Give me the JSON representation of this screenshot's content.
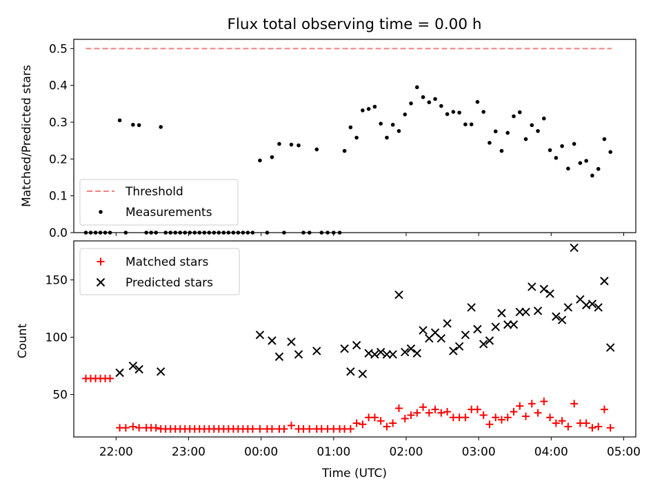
{
  "chart_data": [
    {
      "type": "scatter",
      "title": "Flux total observing time = 0.00 h",
      "xlabel": "",
      "ylabel": "Matched/Predicted stars",
      "xlim": [
        "21:25",
        "05:10"
      ],
      "ylim": [
        0,
        0.525
      ],
      "yticks": [
        0.0,
        0.1,
        0.2,
        0.3,
        0.4,
        0.5
      ],
      "ytick_labels": [
        "0.0",
        "0.1",
        "0.2",
        "0.3",
        "0.4",
        "0.5"
      ],
      "grid": false,
      "legend_position": "lower-left",
      "threshold": {
        "name": "Threshold",
        "value": 0.5,
        "x_range": [
          "21:35",
          "04:50"
        ],
        "color": "#f08080",
        "style": "dashed"
      },
      "series": [
        {
          "name": "Measurements",
          "marker": "dot",
          "color": "#000000",
          "points": [
            [
              "21:35",
              0
            ],
            [
              "21:39",
              0
            ],
            [
              "21:43",
              0
            ],
            [
              "21:47",
              0
            ],
            [
              "21:51",
              0
            ],
            [
              "21:55",
              0
            ],
            [
              "22:03",
              0.305
            ],
            [
              "22:08",
              0
            ],
            [
              "22:14",
              0.293
            ],
            [
              "22:19",
              0.292
            ],
            [
              "22:25",
              0
            ],
            [
              "22:29",
              0
            ],
            [
              "22:33",
              0
            ],
            [
              "22:37",
              0.287
            ],
            [
              "22:41",
              0
            ],
            [
              "22:45",
              0
            ],
            [
              "22:49",
              0
            ],
            [
              "22:53",
              0
            ],
            [
              "22:57",
              0
            ],
            [
              "23:01",
              0
            ],
            [
              "23:05",
              0
            ],
            [
              "23:09",
              0
            ],
            [
              "23:13",
              0
            ],
            [
              "23:17",
              0
            ],
            [
              "23:21",
              0
            ],
            [
              "23:25",
              0
            ],
            [
              "23:29",
              0
            ],
            [
              "23:33",
              0
            ],
            [
              "23:37",
              0
            ],
            [
              "23:41",
              0
            ],
            [
              "23:45",
              0
            ],
            [
              "23:49",
              0
            ],
            [
              "23:53",
              0
            ],
            [
              "23:59",
              0.196
            ],
            [
              "00:05",
              0
            ],
            [
              "00:09",
              0.205
            ],
            [
              "00:15",
              0.241
            ],
            [
              "00:19",
              0
            ],
            [
              "00:25",
              0.239
            ],
            [
              "00:31",
              0.237
            ],
            [
              "00:35",
              0
            ],
            [
              "00:40",
              0
            ],
            [
              "00:46",
              0.226
            ],
            [
              "00:50",
              0
            ],
            [
              "00:55",
              0
            ],
            [
              "01:00",
              0
            ],
            [
              "01:05",
              0
            ],
            [
              "01:09",
              0.222
            ],
            [
              "01:14",
              0.286
            ],
            [
              "01:19",
              0.258
            ],
            [
              "01:24",
              0.332
            ],
            [
              "01:29",
              0.336
            ],
            [
              "01:34",
              0.342
            ],
            [
              "01:39",
              0.296
            ],
            [
              "01:44",
              0.258
            ],
            [
              "01:49",
              0.293
            ],
            [
              "01:54",
              0.276
            ],
            [
              "01:59",
              0.321
            ],
            [
              "02:04",
              0.351
            ],
            [
              "02:09",
              0.395
            ],
            [
              "02:14",
              0.368
            ],
            [
              "02:19",
              0.354
            ],
            [
              "02:24",
              0.363
            ],
            [
              "02:29",
              0.344
            ],
            [
              "02:34",
              0.322
            ],
            [
              "02:39",
              0.328
            ],
            [
              "02:44",
              0.326
            ],
            [
              "02:49",
              0.294
            ],
            [
              "02:54",
              0.294
            ],
            [
              "02:59",
              0.355
            ],
            [
              "03:04",
              0.328
            ],
            [
              "03:09",
              0.244
            ],
            [
              "03:14",
              0.275
            ],
            [
              "03:19",
              0.222
            ],
            [
              "03:24",
              0.271
            ],
            [
              "03:29",
              0.316
            ],
            [
              "03:34",
              0.327
            ],
            [
              "03:39",
              0.254
            ],
            [
              "03:44",
              0.292
            ],
            [
              "03:49",
              0.276
            ],
            [
              "03:54",
              0.31
            ],
            [
              "03:59",
              0.224
            ],
            [
              "04:04",
              0.203
            ],
            [
              "04:09",
              0.235
            ],
            [
              "04:14",
              0.174
            ],
            [
              "04:19",
              0.241
            ],
            [
              "04:24",
              0.189
            ],
            [
              "04:29",
              0.195
            ],
            [
              "04:34",
              0.155
            ],
            [
              "04:39",
              0.173
            ],
            [
              "04:44",
              0.254
            ],
            [
              "04:49",
              0.219
            ]
          ]
        }
      ]
    },
    {
      "type": "scatter",
      "title": "",
      "xlabel": "Time (UTC)",
      "ylabel": "Count",
      "xlim": [
        "21:25",
        "05:10"
      ],
      "ylim": [
        13,
        184
      ],
      "yticks": [
        50,
        100,
        150
      ],
      "ytick_labels": [
        "50",
        "100",
        "150"
      ],
      "xticks": [
        "22:00",
        "23:00",
        "00:00",
        "01:00",
        "02:00",
        "03:00",
        "04:00",
        "05:00"
      ],
      "xtick_labels": [
        "22:00",
        "23:00",
        "00:00",
        "01:00",
        "02:00",
        "03:00",
        "04:00",
        "05:00"
      ],
      "grid": false,
      "legend_position": "upper-left",
      "series": [
        {
          "name": "Matched stars",
          "marker": "plus",
          "color": "#ff0000",
          "points": [
            [
              "21:35",
              64
            ],
            [
              "21:39",
              64
            ],
            [
              "21:43",
              64
            ],
            [
              "21:47",
              64
            ],
            [
              "21:51",
              64
            ],
            [
              "21:55",
              64
            ],
            [
              "22:03",
              21
            ],
            [
              "22:08",
              21
            ],
            [
              "22:14",
              22
            ],
            [
              "22:19",
              21
            ],
            [
              "22:25",
              21
            ],
            [
              "22:29",
              21
            ],
            [
              "22:33",
              21
            ],
            [
              "22:37",
              20
            ],
            [
              "22:41",
              20
            ],
            [
              "22:45",
              20
            ],
            [
              "22:49",
              20
            ],
            [
              "22:53",
              20
            ],
            [
              "22:57",
              20
            ],
            [
              "23:01",
              20
            ],
            [
              "23:05",
              20
            ],
            [
              "23:09",
              20
            ],
            [
              "23:13",
              20
            ],
            [
              "23:17",
              20
            ],
            [
              "23:21",
              20
            ],
            [
              "23:25",
              20
            ],
            [
              "23:29",
              20
            ],
            [
              "23:33",
              20
            ],
            [
              "23:37",
              20
            ],
            [
              "23:41",
              20
            ],
            [
              "23:45",
              20
            ],
            [
              "23:49",
              20
            ],
            [
              "23:53",
              20
            ],
            [
              "23:59",
              20
            ],
            [
              "00:05",
              20
            ],
            [
              "00:09",
              20
            ],
            [
              "00:15",
              20
            ],
            [
              "00:19",
              20
            ],
            [
              "00:25",
              23
            ],
            [
              "00:31",
              20
            ],
            [
              "00:35",
              20
            ],
            [
              "00:40",
              20
            ],
            [
              "00:46",
              20
            ],
            [
              "00:50",
              20
            ],
            [
              "00:55",
              20
            ],
            [
              "01:00",
              20
            ],
            [
              "01:05",
              20
            ],
            [
              "01:09",
              20
            ],
            [
              "01:14",
              20
            ],
            [
              "01:19",
              25
            ],
            [
              "01:24",
              24
            ],
            [
              "01:29",
              30
            ],
            [
              "01:34",
              30
            ],
            [
              "01:39",
              27
            ],
            [
              "01:44",
              22
            ],
            [
              "01:49",
              25
            ],
            [
              "01:54",
              38
            ],
            [
              "01:59",
              29
            ],
            [
              "02:04",
              32
            ],
            [
              "02:09",
              34
            ],
            [
              "02:14",
              39
            ],
            [
              "02:19",
              34
            ],
            [
              "02:24",
              37
            ],
            [
              "02:29",
              34
            ],
            [
              "02:34",
              35
            ],
            [
              "02:39",
              30
            ],
            [
              "02:44",
              30
            ],
            [
              "02:49",
              30
            ],
            [
              "02:54",
              37
            ],
            [
              "02:59",
              37
            ],
            [
              "03:04",
              32
            ],
            [
              "03:09",
              24
            ],
            [
              "03:14",
              30
            ],
            [
              "03:19",
              28
            ],
            [
              "03:24",
              30
            ],
            [
              "03:29",
              35
            ],
            [
              "03:34",
              40
            ],
            [
              "03:39",
              31
            ],
            [
              "03:44",
              42
            ],
            [
              "03:49",
              34
            ],
            [
              "03:54",
              44
            ],
            [
              "03:59",
              30
            ],
            [
              "04:04",
              25
            ],
            [
              "04:09",
              27
            ],
            [
              "04:14",
              22
            ],
            [
              "04:19",
              42
            ],
            [
              "04:24",
              25
            ],
            [
              "04:29",
              25
            ],
            [
              "04:34",
              21
            ],
            [
              "04:39",
              22
            ],
            [
              "04:44",
              37
            ],
            [
              "04:49",
              21
            ]
          ]
        },
        {
          "name": "Predicted stars",
          "marker": "x",
          "color": "#000000",
          "points": [
            [
              "22:03",
              69
            ],
            [
              "22:14",
              75
            ],
            [
              "22:19",
              72
            ],
            [
              "22:37",
              70
            ],
            [
              "23:59",
              102
            ],
            [
              "00:09",
              97
            ],
            [
              "00:15",
              83
            ],
            [
              "00:25",
              96
            ],
            [
              "00:31",
              85
            ],
            [
              "00:46",
              88
            ],
            [
              "01:09",
              90
            ],
            [
              "01:14",
              70
            ],
            [
              "01:19",
              93
            ],
            [
              "01:24",
              68
            ],
            [
              "01:29",
              86
            ],
            [
              "01:34",
              85
            ],
            [
              "01:39",
              87
            ],
            [
              "01:44",
              85
            ],
            [
              "01:49",
              85
            ],
            [
              "01:54",
              137
            ],
            [
              "01:59",
              87
            ],
            [
              "02:04",
              90
            ],
            [
              "02:09",
              86
            ],
            [
              "02:14",
              106
            ],
            [
              "02:19",
              99
            ],
            [
              "02:24",
              104
            ],
            [
              "02:29",
              99
            ],
            [
              "02:34",
              112
            ],
            [
              "02:39",
              88
            ],
            [
              "02:44",
              92
            ],
            [
              "02:49",
              102
            ],
            [
              "02:54",
              126
            ],
            [
              "02:59",
              107
            ],
            [
              "03:04",
              94
            ],
            [
              "03:09",
              97
            ],
            [
              "03:14",
              109
            ],
            [
              "03:19",
              121
            ],
            [
              "03:24",
              111
            ],
            [
              "03:29",
              111
            ],
            [
              "03:34",
              122
            ],
            [
              "03:39",
              122
            ],
            [
              "03:44",
              144
            ],
            [
              "03:49",
              123
            ],
            [
              "03:54",
              142
            ],
            [
              "03:59",
              138
            ],
            [
              "04:04",
              118
            ],
            [
              "04:09",
              115
            ],
            [
              "04:14",
              126
            ],
            [
              "04:19",
              178
            ],
            [
              "04:24",
              133
            ],
            [
              "04:29",
              128
            ],
            [
              "04:34",
              129
            ],
            [
              "04:39",
              126
            ],
            [
              "04:44",
              149
            ],
            [
              "04:49",
              91
            ]
          ]
        }
      ]
    }
  ]
}
